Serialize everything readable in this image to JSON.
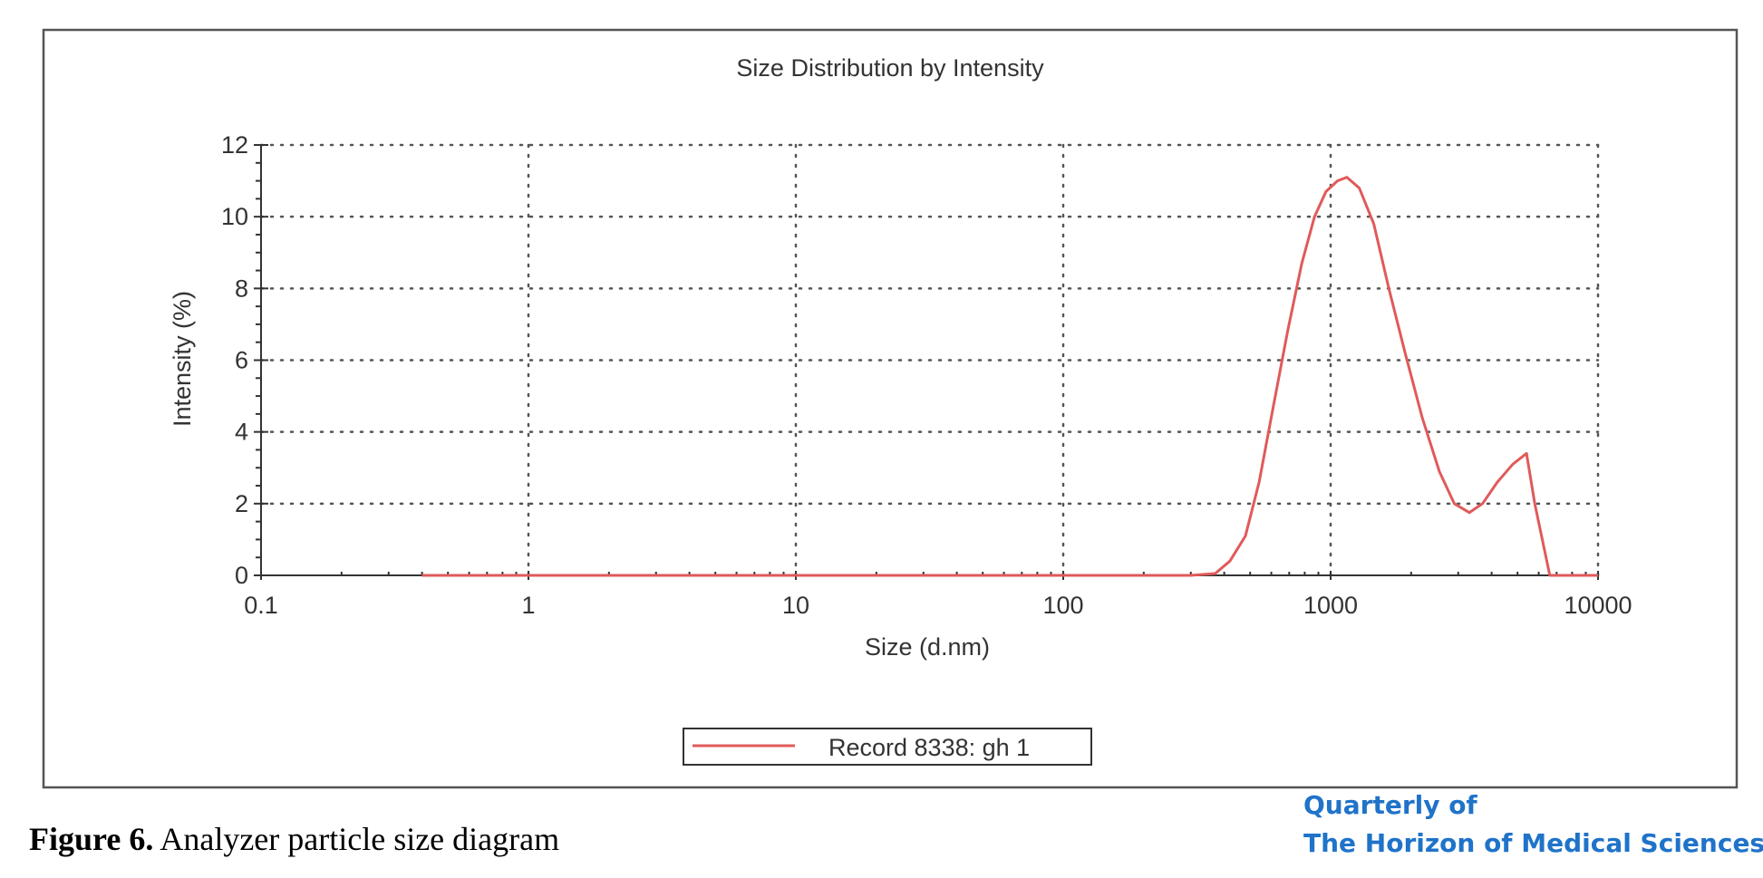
{
  "chart_data": {
    "type": "line",
    "title": "Size Distribution by Intensity",
    "xlabel": "Size (d.nm)",
    "ylabel": "Intensity (%)",
    "x_scale": "log",
    "xlim": [
      0.1,
      10000
    ],
    "ylim": [
      0,
      12
    ],
    "x_ticks": [
      "0.1",
      "1",
      "10",
      "100",
      "1000",
      "10000"
    ],
    "x_tick_values": [
      0.1,
      1,
      10,
      100,
      1000,
      10000
    ],
    "y_ticks": [
      "0",
      "2",
      "4",
      "6",
      "8",
      "10",
      "12"
    ],
    "y_tick_values": [
      0,
      2,
      4,
      6,
      8,
      10,
      12
    ],
    "grid": true,
    "legend_position": "bottom-center",
    "series": [
      {
        "name": "Record 8338: gh 1",
        "color": "#e05a5a",
        "x": [
          0.4,
          1,
          10,
          100,
          300,
          370,
          420,
          480,
          540,
          610,
          690,
          780,
          870,
          960,
          1060,
          1150,
          1280,
          1450,
          1650,
          1900,
          2200,
          2550,
          2900,
          3300,
          3700,
          4200,
          4800,
          5400,
          5800,
          6600,
          8000,
          10000
        ],
        "values": [
          0,
          0,
          0,
          0,
          0,
          0.05,
          0.4,
          1.1,
          2.6,
          4.7,
          6.8,
          8.7,
          10.0,
          10.7,
          11.0,
          11.1,
          10.8,
          9.8,
          8.0,
          6.2,
          4.4,
          2.9,
          2.0,
          1.75,
          2.0,
          2.6,
          3.1,
          3.4,
          2.0,
          0,
          0,
          0
        ]
      }
    ]
  },
  "caption": {
    "label": "Figure 6.",
    "text": " Analyzer particle size diagram"
  },
  "journal": {
    "line1": "Quarterly of",
    "line2": "The Horizon of Medical Sciences"
  }
}
